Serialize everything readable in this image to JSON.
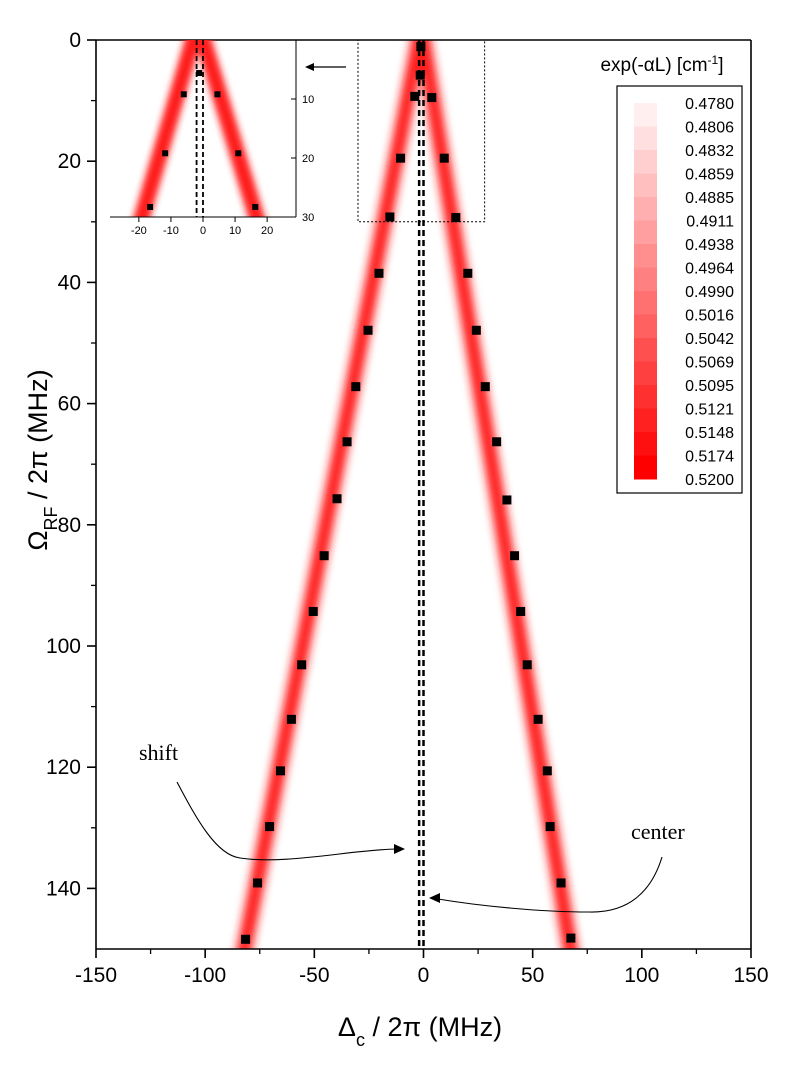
{
  "chart_data": {
    "type": "heatmap",
    "main": {
      "xlabel": "Δc / 2π (MHz)",
      "ylabel": "ΩRF / 2π (MHz)",
      "xlim": [
        -150,
        150
      ],
      "ylim": [
        0,
        150
      ],
      "y_inverted": true,
      "x_ticks": [
        -150,
        -100,
        -50,
        0,
        50,
        100,
        150
      ],
      "y_ticks": [
        0,
        20,
        40,
        60,
        80,
        100,
        120,
        140
      ],
      "x_tick_labels": [
        "-150",
        "-100",
        "-50",
        "0",
        "50",
        "100",
        "150"
      ],
      "y_tick_labels": [
        "0",
        "20",
        "40",
        "60",
        "80",
        "100",
        "120",
        "140"
      ],
      "series": [
        {
          "points": [
            [
              -1.2,
              1.1
            ],
            [
              -4,
              9.3
            ],
            [
              -10.5,
              19.5
            ],
            [
              -15.4,
              29.2
            ],
            [
              -20.4,
              38.5
            ],
            [
              -25.4,
              47.9
            ],
            [
              -31,
              57.2
            ],
            [
              -35,
              66.3
            ],
            [
              -39.6,
              75.7
            ],
            [
              -45.5,
              85.1
            ],
            [
              -50.5,
              94.3
            ],
            [
              -55.8,
              103.1
            ],
            [
              -60.5,
              112.1
            ],
            [
              -65.5,
              120.6
            ],
            [
              -70.5,
              129.8
            ],
            [
              -76,
              139.1
            ],
            [
              -81.5,
              148.4
            ]
          ]
        },
        {
          "points": [
            [
              -1.5,
              5.8
            ],
            [
              3.8,
              9.5
            ],
            [
              9.5,
              19.5
            ],
            [
              14.8,
              29.3
            ],
            [
              20.3,
              38.5
            ],
            [
              24.2,
              47.9
            ],
            [
              28.3,
              57.2
            ],
            [
              33.5,
              66.3
            ],
            [
              38.2,
              75.9
            ],
            [
              41.7,
              85.1
            ],
            [
              44.5,
              94.3
            ],
            [
              47.5,
              103.1
            ],
            [
              52.5,
              112.1
            ],
            [
              56.7,
              120.6
            ],
            [
              58,
              129.8
            ],
            [
              63,
              139.1
            ],
            [
              67.5,
              148.2
            ]
          ]
        }
      ],
      "band_center": {
        "left_slope": -0.54,
        "right_slope": 0.455,
        "x0": -1.0
      },
      "reference_lines": [
        -2,
        0
      ],
      "dotted_box": {
        "x": [
          -30,
          28
        ],
        "y": [
          0,
          30
        ]
      },
      "annotations": [
        {
          "text": "shift"
        },
        {
          "text": "center"
        }
      ]
    },
    "inset": {
      "xlim": [
        -29,
        29
      ],
      "ylim": [
        0,
        30
      ],
      "x_ticks": [
        -20,
        -10,
        0,
        10,
        20
      ],
      "x_tick_labels": [
        "-20",
        "-10",
        "0",
        "10",
        "20"
      ],
      "y_ticks": [
        10,
        20,
        30
      ],
      "y_tick_labels": [
        "10",
        "20",
        "30"
      ],
      "series": [
        {
          "points": [
            [
              -1.2,
              5.6
            ],
            [
              -6.0,
              9.2
            ],
            [
              -11.8,
              19.2
            ],
            [
              -16.5,
              28.3
            ]
          ]
        },
        {
          "points": [
            [
              4.5,
              9.2
            ],
            [
              11.0,
              19.2
            ],
            [
              16.3,
              28.3
            ]
          ]
        }
      ],
      "reference_lines": [
        -2,
        0
      ]
    },
    "colorbar": {
      "title": "exp(-αL) [cm⁻¹]",
      "labels": [
        "0.4780",
        "0.4806",
        "0.4832",
        "0.4859",
        "0.4885",
        "0.4911",
        "0.4938",
        "0.4964",
        "0.4990",
        "0.5016",
        "0.5042",
        "0.5069",
        "0.5095",
        "0.5121",
        "0.5148",
        "0.5174",
        "0.5200"
      ],
      "color_low": "#ffffff",
      "color_high": "#ff0000"
    },
    "colors": {
      "band": "#ff1a1a",
      "marker": "#000000",
      "axis": "#000000"
    }
  }
}
